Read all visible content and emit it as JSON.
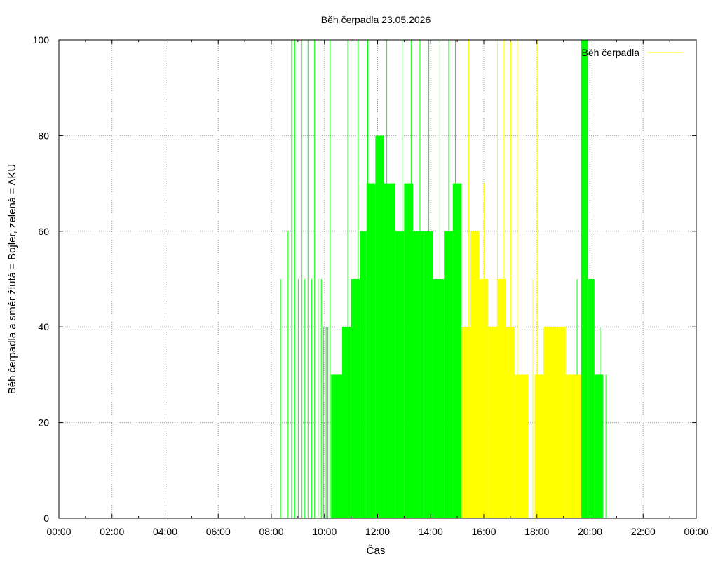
{
  "chart_data": {
    "type": "bar",
    "title": "Běh čerpadla 23.05.2026",
    "xlabel": "Čas",
    "ylabel": "Běh čerpadla a směr žlutá = Bojler, zelená = AKU",
    "xlim": [
      "00:00",
      "24:00"
    ],
    "ylim": [
      0,
      100
    ],
    "xticks": [
      "00:00",
      "02:00",
      "04:00",
      "06:00",
      "08:00",
      "10:00",
      "12:00",
      "14:00",
      "16:00",
      "18:00",
      "20:00",
      "22:00",
      "00:00"
    ],
    "yticks": [
      "0",
      "20",
      "40",
      "60",
      "80",
      "100"
    ],
    "grid": true,
    "legend": {
      "position": "top-right",
      "entries": [
        {
          "name": "Běh čerpadla",
          "color": "#ffff00"
        }
      ]
    },
    "colors": {
      "Bojler": "#ffff00",
      "AKU": "#00ff00"
    },
    "series": [
      {
        "name": "AKU",
        "color": "#00ff00",
        "spikes": [
          [
            "08:20",
            50
          ],
          [
            "08:37",
            60
          ],
          [
            "08:45",
            100
          ],
          [
            "08:52",
            100
          ],
          [
            "09:00",
            50
          ],
          [
            "09:07",
            100
          ],
          [
            "09:15",
            50
          ],
          [
            "09:22",
            100
          ],
          [
            "09:30",
            50
          ],
          [
            "09:37",
            100
          ],
          [
            "09:45",
            50
          ],
          [
            "09:52",
            50
          ],
          [
            "09:57",
            40
          ],
          [
            "10:03",
            40
          ],
          [
            "10:07",
            40
          ],
          [
            "10:12",
            100
          ],
          [
            "10:52",
            100
          ],
          [
            "11:15",
            100
          ],
          [
            "11:37",
            100
          ],
          [
            "12:20",
            100
          ],
          [
            "12:55",
            100
          ],
          [
            "13:15",
            100
          ],
          [
            "13:35",
            100
          ],
          [
            "13:55",
            100
          ],
          [
            "14:20",
            100
          ],
          [
            "14:40",
            100
          ],
          [
            "14:55",
            100
          ],
          [
            "19:30",
            50
          ],
          [
            "19:50",
            70
          ],
          [
            "20:15",
            40
          ],
          [
            "20:22",
            40
          ],
          [
            "20:35",
            30
          ]
        ],
        "blocks": [
          [
            "10:15",
            "10:40",
            30
          ],
          [
            "10:40",
            "11:00",
            40
          ],
          [
            "11:00",
            "11:20",
            50
          ],
          [
            "11:20",
            "11:35",
            60
          ],
          [
            "11:35",
            "11:55",
            70
          ],
          [
            "11:55",
            "12:15",
            80
          ],
          [
            "12:15",
            "12:40",
            70
          ],
          [
            "12:40",
            "13:00",
            60
          ],
          [
            "13:00",
            "13:20",
            70
          ],
          [
            "13:20",
            "13:45",
            60
          ],
          [
            "13:45",
            "14:05",
            60
          ],
          [
            "14:05",
            "14:30",
            50
          ],
          [
            "14:30",
            "14:50",
            60
          ],
          [
            "14:50",
            "15:10",
            70
          ],
          [
            "19:40",
            "19:55",
            100
          ],
          [
            "19:55",
            "20:10",
            50
          ],
          [
            "20:10",
            "20:30",
            30
          ]
        ]
      },
      {
        "name": "Bojler",
        "color": "#ffff00",
        "spikes": [
          [
            "15:25",
            100
          ],
          [
            "16:00",
            70
          ],
          [
            "16:30",
            100
          ],
          [
            "16:45",
            100
          ],
          [
            "17:00",
            100
          ],
          [
            "17:15",
            100
          ],
          [
            "17:50",
            50
          ],
          [
            "18:00",
            100
          ]
        ],
        "blocks": [
          [
            "15:10",
            "15:30",
            40
          ],
          [
            "15:30",
            "15:50",
            60
          ],
          [
            "15:50",
            "16:10",
            50
          ],
          [
            "16:10",
            "16:30",
            40
          ],
          [
            "16:30",
            "16:50",
            50
          ],
          [
            "16:50",
            "17:10",
            40
          ],
          [
            "17:10",
            "17:40",
            30
          ],
          [
            "17:55",
            "18:15",
            30
          ],
          [
            "18:15",
            "19:05",
            40
          ],
          [
            "19:05",
            "19:40",
            30
          ]
        ]
      }
    ]
  }
}
